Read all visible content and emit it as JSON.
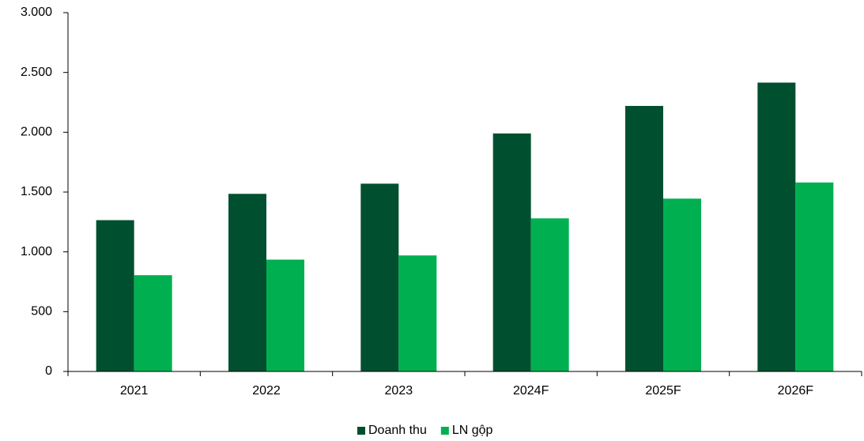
{
  "chart_data": {
    "type": "bar",
    "categories": [
      "2021",
      "2022",
      "2023",
      "2024F",
      "2025F",
      "2026F"
    ],
    "series": [
      {
        "name": "Doanh thu",
        "color": "#005030",
        "values": [
          1265,
          1485,
          1570,
          1990,
          2220,
          2415
        ]
      },
      {
        "name": "LN gộp",
        "color": "#00b050",
        "values": [
          805,
          935,
          970,
          1280,
          1445,
          1580
        ]
      }
    ],
    "ylim": [
      0,
      3000
    ],
    "yticks": [
      0,
      500,
      {
        "value": 1000,
        "label": "1.000"
      },
      {
        "value": 1500,
        "label": "1.500"
      },
      {
        "value": 2000,
        "label": "2.000"
      },
      {
        "value": 2500,
        "label": "2.500"
      },
      {
        "value": 3000,
        "label": "3.000"
      }
    ],
    "grid": false,
    "legend": "bottom"
  }
}
